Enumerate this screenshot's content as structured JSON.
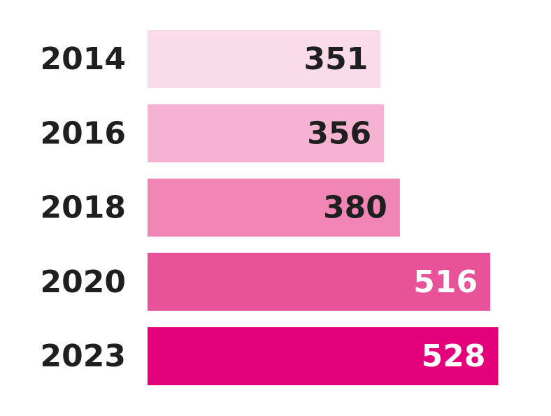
{
  "chart_data": {
    "type": "bar",
    "orientation": "horizontal",
    "categories": [
      "2014",
      "2016",
      "2018",
      "2020",
      "2023"
    ],
    "values": [
      351,
      356,
      380,
      516,
      528
    ],
    "title": "",
    "xlabel": "",
    "ylabel": "",
    "grid": false,
    "legend": "none",
    "data_labels": "inside-end",
    "bar_colors": [
      "#fadbe9",
      "#f5b3d1",
      "#f086b6",
      "#e85298",
      "#e3007a"
    ],
    "label_colors": [
      "#1f1f1f",
      "#1f1f1f",
      "#1f1f1f",
      "#ffffff",
      "#ffffff"
    ]
  }
}
